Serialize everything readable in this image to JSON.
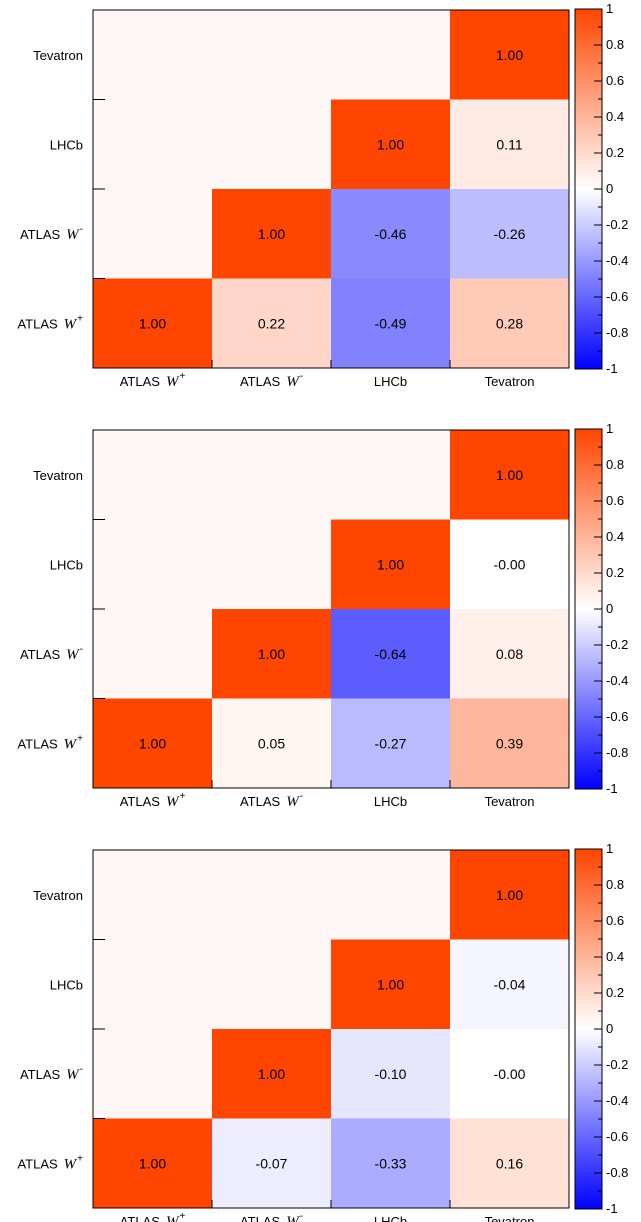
{
  "chart_data": [
    {
      "type": "heatmap",
      "categories": [
        "ATLAS W+",
        "ATLAS W-",
        "LHCb",
        "Tevatron"
      ],
      "category_labels": [
        {
          "prefix": "ATLAS",
          "sym": "W",
          "sup": "+"
        },
        {
          "prefix": "ATLAS",
          "sym": "W",
          "sup": "-"
        },
        {
          "prefix": "LHCb",
          "sym": "",
          "sup": ""
        },
        {
          "prefix": "Tevatron",
          "sym": "",
          "sup": ""
        }
      ],
      "cells": [
        {
          "x": "ATLAS W+",
          "y": "ATLAS W+",
          "value": 1.0,
          "label": "1.00"
        },
        {
          "x": "ATLAS W-",
          "y": "ATLAS W+",
          "value": 0.22,
          "label": "0.22"
        },
        {
          "x": "LHCb",
          "y": "ATLAS W+",
          "value": -0.49,
          "label": "-0.49"
        },
        {
          "x": "Tevatron",
          "y": "ATLAS W+",
          "value": 0.28,
          "label": "0.28"
        },
        {
          "x": "ATLAS W-",
          "y": "ATLAS W-",
          "value": 1.0,
          "label": "1.00"
        },
        {
          "x": "LHCb",
          "y": "ATLAS W-",
          "value": -0.46,
          "label": "-0.46"
        },
        {
          "x": "Tevatron",
          "y": "ATLAS W-",
          "value": -0.26,
          "label": "-0.26"
        },
        {
          "x": "LHCb",
          "y": "LHCb",
          "value": 1.0,
          "label": "1.00"
        },
        {
          "x": "Tevatron",
          "y": "LHCb",
          "value": 0.11,
          "label": "0.11"
        },
        {
          "x": "Tevatron",
          "y": "Tevatron",
          "value": 1.0,
          "label": "1.00"
        }
      ],
      "color_scale": {
        "min": -1,
        "max": 1,
        "ticks": [
          1,
          0.8,
          0.6,
          0.4,
          0.2,
          0,
          -0.2,
          -0.4,
          -0.6,
          -0.8,
          -1
        ],
        "tick_labels": [
          "1",
          "0.8",
          "0.6",
          "0.4",
          "0.2",
          "0",
          "-0.2",
          "-0.4",
          "-0.6",
          "-0.8",
          "-1"
        ],
        "positive_color": "#ff4500",
        "negative_color": "#0000ff",
        "zero_color": "#ffffff",
        "empty_color": "#fff7f6"
      }
    },
    {
      "type": "heatmap",
      "categories": [
        "ATLAS W+",
        "ATLAS W-",
        "LHCb",
        "Tevatron"
      ],
      "category_labels": [
        {
          "prefix": "ATLAS",
          "sym": "W",
          "sup": "+"
        },
        {
          "prefix": "ATLAS",
          "sym": "W",
          "sup": "-"
        },
        {
          "prefix": "LHCb",
          "sym": "",
          "sup": ""
        },
        {
          "prefix": "Tevatron",
          "sym": "",
          "sup": ""
        }
      ],
      "cells": [
        {
          "x": "ATLAS W+",
          "y": "ATLAS W+",
          "value": 1.0,
          "label": "1.00"
        },
        {
          "x": "ATLAS W-",
          "y": "ATLAS W+",
          "value": 0.05,
          "label": "0.05"
        },
        {
          "x": "LHCb",
          "y": "ATLAS W+",
          "value": -0.27,
          "label": "-0.27"
        },
        {
          "x": "Tevatron",
          "y": "ATLAS W+",
          "value": 0.39,
          "label": "0.39"
        },
        {
          "x": "ATLAS W-",
          "y": "ATLAS W-",
          "value": 1.0,
          "label": "1.00"
        },
        {
          "x": "LHCb",
          "y": "ATLAS W-",
          "value": -0.64,
          "label": "-0.64"
        },
        {
          "x": "Tevatron",
          "y": "ATLAS W-",
          "value": 0.08,
          "label": "0.08"
        },
        {
          "x": "LHCb",
          "y": "LHCb",
          "value": 1.0,
          "label": "1.00"
        },
        {
          "x": "Tevatron",
          "y": "LHCb",
          "value": -0.0,
          "label": "-0.00"
        },
        {
          "x": "Tevatron",
          "y": "Tevatron",
          "value": 1.0,
          "label": "1.00"
        }
      ],
      "color_scale": {
        "min": -1,
        "max": 1,
        "ticks": [
          1,
          0.8,
          0.6,
          0.4,
          0.2,
          0,
          -0.2,
          -0.4,
          -0.6,
          -0.8,
          -1
        ],
        "tick_labels": [
          "1",
          "0.8",
          "0.6",
          "0.4",
          "0.2",
          "0",
          "-0.2",
          "-0.4",
          "-0.6",
          "-0.8",
          "-1"
        ],
        "positive_color": "#ff4500",
        "negative_color": "#0000ff",
        "zero_color": "#ffffff",
        "empty_color": "#fff7f6"
      }
    },
    {
      "type": "heatmap",
      "categories": [
        "ATLAS W+",
        "ATLAS W-",
        "LHCb",
        "Tevatron"
      ],
      "category_labels": [
        {
          "prefix": "ATLAS",
          "sym": "W",
          "sup": "+"
        },
        {
          "prefix": "ATLAS",
          "sym": "W",
          "sup": "-"
        },
        {
          "prefix": "LHCb",
          "sym": "",
          "sup": ""
        },
        {
          "prefix": "Tevatron",
          "sym": "",
          "sup": ""
        }
      ],
      "cells": [
        {
          "x": "ATLAS W+",
          "y": "ATLAS W+",
          "value": 1.0,
          "label": "1.00"
        },
        {
          "x": "ATLAS W-",
          "y": "ATLAS W+",
          "value": -0.07,
          "label": "-0.07"
        },
        {
          "x": "LHCb",
          "y": "ATLAS W+",
          "value": -0.33,
          "label": "-0.33"
        },
        {
          "x": "Tevatron",
          "y": "ATLAS W+",
          "value": 0.16,
          "label": "0.16"
        },
        {
          "x": "ATLAS W-",
          "y": "ATLAS W-",
          "value": 1.0,
          "label": "1.00"
        },
        {
          "x": "LHCb",
          "y": "ATLAS W-",
          "value": -0.1,
          "label": "-0.10"
        },
        {
          "x": "Tevatron",
          "y": "ATLAS W-",
          "value": -0.0,
          "label": "-0.00"
        },
        {
          "x": "LHCb",
          "y": "LHCb",
          "value": 1.0,
          "label": "1.00"
        },
        {
          "x": "Tevatron",
          "y": "LHCb",
          "value": -0.04,
          "label": "-0.04"
        },
        {
          "x": "Tevatron",
          "y": "Tevatron",
          "value": 1.0,
          "label": "1.00"
        }
      ],
      "color_scale": {
        "min": -1,
        "max": 1,
        "ticks": [
          1,
          0.8,
          0.6,
          0.4,
          0.2,
          0,
          -0.2,
          -0.4,
          -0.6,
          -0.8,
          -1
        ],
        "tick_labels": [
          "1",
          "0.8",
          "0.6",
          "0.4",
          "0.2",
          "0",
          "-0.2",
          "-0.4",
          "-0.6",
          "-0.8",
          "-1"
        ],
        "positive_color": "#ff4500",
        "negative_color": "#0000ff",
        "zero_color": "#ffffff",
        "empty_color": "#fff7f6"
      }
    }
  ]
}
